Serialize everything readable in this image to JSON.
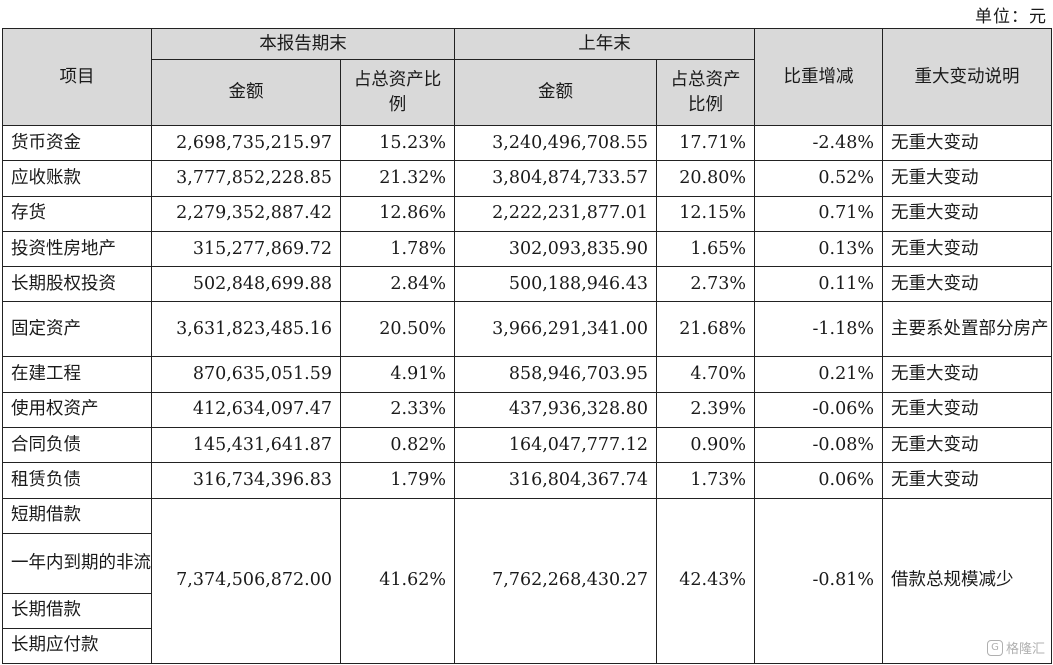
{
  "unit_label": "单位：元",
  "header": {
    "item": "项目",
    "current_period": "本报告期末",
    "prior_year": "上年末",
    "amount": "金额",
    "ratio": "占总资产比例",
    "change": "比重增减",
    "note": "重大变动说明"
  },
  "rows": [
    {
      "name": "货币资金",
      "cur_amount": "2,698,735,215.97",
      "cur_ratio": "15.23%",
      "prev_amount": "3,240,496,708.55",
      "prev_ratio": "17.71%",
      "change": "-2.48%",
      "note": "无重大变动"
    },
    {
      "name": "应收账款",
      "cur_amount": "3,777,852,228.85",
      "cur_ratio": "21.32%",
      "prev_amount": "3,804,874,733.57",
      "prev_ratio": "20.80%",
      "change": "0.52%",
      "note": "无重大变动"
    },
    {
      "name": "存货",
      "cur_amount": "2,279,352,887.42",
      "cur_ratio": "12.86%",
      "prev_amount": "2,222,231,877.01",
      "prev_ratio": "12.15%",
      "change": "0.71%",
      "note": "无重大变动"
    },
    {
      "name": "投资性房地产",
      "cur_amount": "315,277,869.72",
      "cur_ratio": "1.78%",
      "prev_amount": "302,093,835.90",
      "prev_ratio": "1.65%",
      "change": "0.13%",
      "note": "无重大变动"
    },
    {
      "name": "长期股权投资",
      "cur_amount": "502,848,699.88",
      "cur_ratio": "2.84%",
      "prev_amount": "500,188,946.43",
      "prev_ratio": "2.73%",
      "change": "0.11%",
      "note": "无重大变动"
    },
    {
      "name": "固定资产",
      "cur_amount": "3,631,823,485.16",
      "cur_ratio": "20.50%",
      "prev_amount": "3,966,291,341.00",
      "prev_ratio": "21.68%",
      "change": "-1.18%",
      "note": "主要系处置部分房产"
    },
    {
      "name": "在建工程",
      "cur_amount": "870,635,051.59",
      "cur_ratio": "4.91%",
      "prev_amount": "858,946,703.95",
      "prev_ratio": "4.70%",
      "change": "0.21%",
      "note": "无重大变动"
    },
    {
      "name": "使用权资产",
      "cur_amount": "412,634,097.47",
      "cur_ratio": "2.33%",
      "prev_amount": "437,936,328.80",
      "prev_ratio": "2.39%",
      "change": "-0.06%",
      "note": "无重大变动"
    },
    {
      "name": "合同负债",
      "cur_amount": "145,431,641.87",
      "cur_ratio": "0.82%",
      "prev_amount": "164,047,777.12",
      "prev_ratio": "0.90%",
      "change": "-0.08%",
      "note": "无重大变动"
    },
    {
      "name": "租赁负债",
      "cur_amount": "316,734,396.83",
      "cur_ratio": "1.79%",
      "prev_amount": "316,804,367.74",
      "prev_ratio": "1.73%",
      "change": "0.06%",
      "note": "无重大变动"
    }
  ],
  "merged": {
    "names": [
      "短期借款",
      "一年内到期的非流动负债",
      "长期借款",
      "长期应付款"
    ],
    "cur_amount": "7,374,506,872.00",
    "cur_ratio": "41.62%",
    "prev_amount": "7,762,268,430.27",
    "prev_ratio": "42.43%",
    "change": "-0.81%",
    "note": "借款总规模减少"
  },
  "watermark": "格隆汇"
}
